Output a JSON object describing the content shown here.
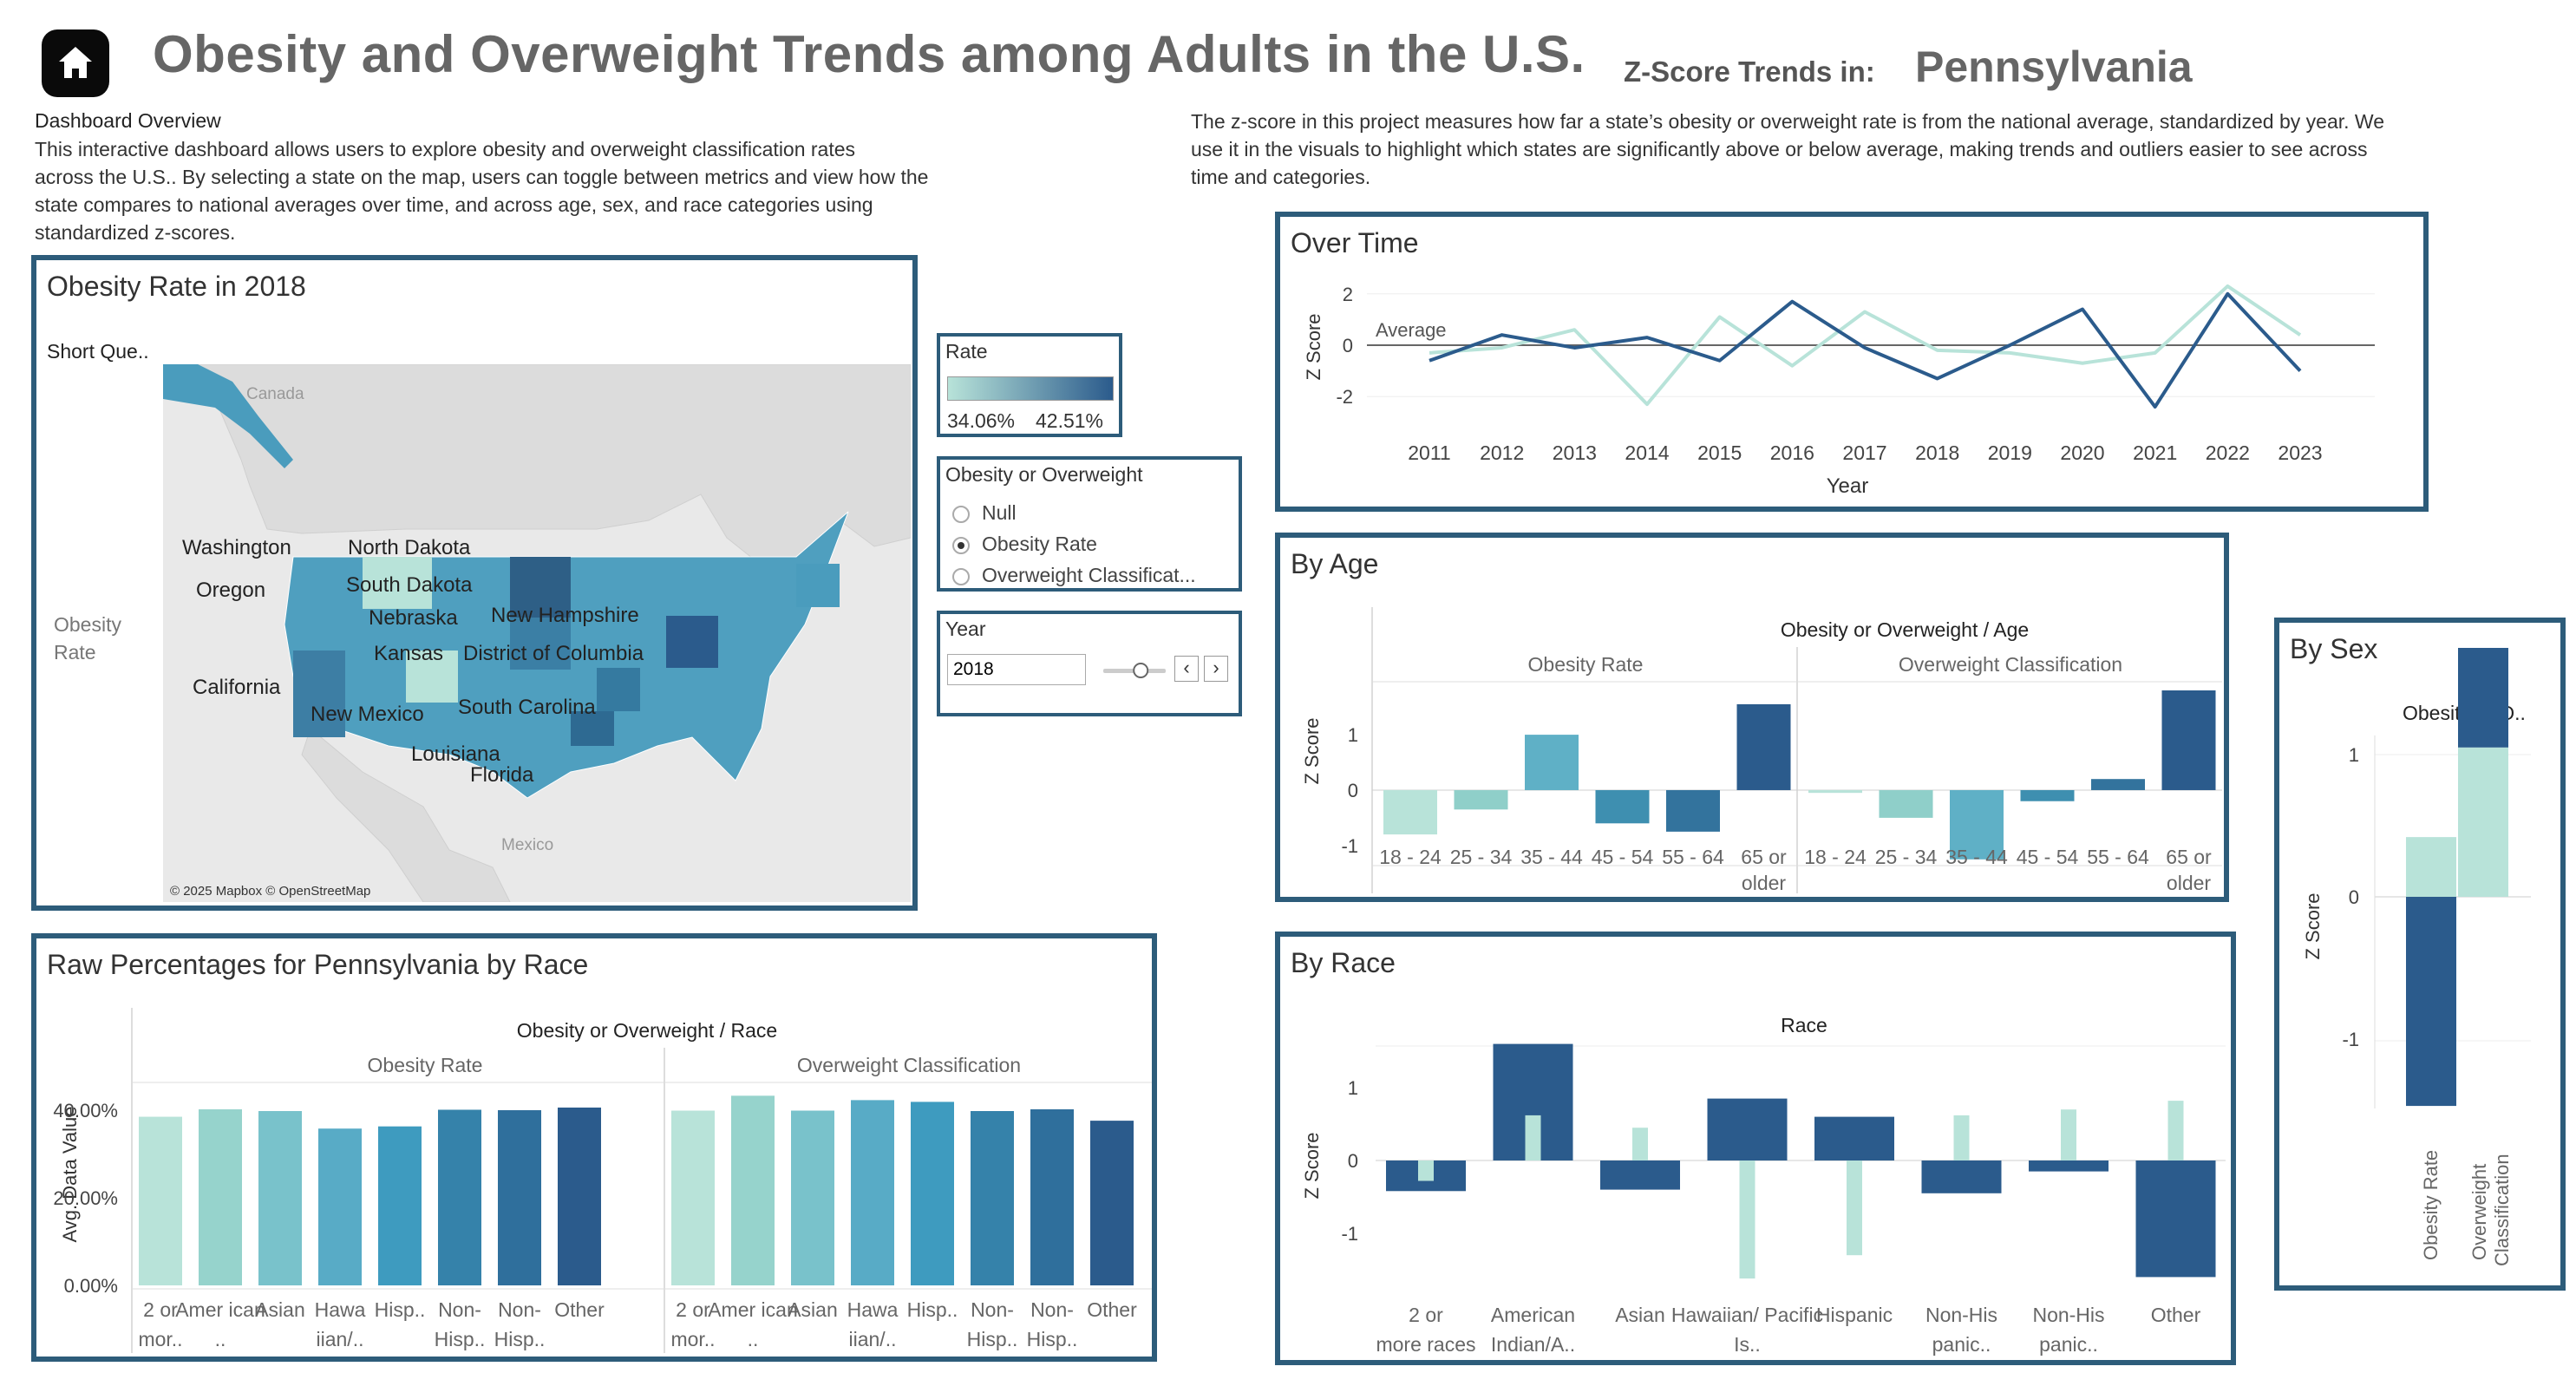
{
  "header": {
    "home_icon": "home-icon",
    "title": "Obesity and Overweight Trends among Adults in the U.S.",
    "zscore_label": "Z-Score Trends in:",
    "state": "Pennsylvania"
  },
  "overview": {
    "heading": "Dashboard Overview",
    "lines": [
      "This interactive dashboard allows users to explore obesity and overweight classification rates",
      "across the U.S.. By selecting a state on the map, users can toggle between metrics and view how the",
      "state compares to national averages over time, and across age, sex, and race categories using",
      "standardized z-scores."
    ],
    "zscore_lines": [
      "The z-score in this project measures how far a state’s obesity or overweight rate is from the national average, standardized by year. We",
      "use it in the visuals to highlight which states are significantly above or below average, making trends and outliers easier to see across",
      "time and categories."
    ]
  },
  "colors": {
    "border": "#2d5c7a",
    "dark": "#2b5b8c",
    "light": "#b8e3d9",
    "mid": "#3e8fb0"
  },
  "map": {
    "title": "Obesity Rate  in 2018",
    "short_question": "Short Que..",
    "row_label_1": "Obesity",
    "row_label_2": "Rate",
    "labels": {
      "canada": "Canada",
      "mexico": "Mexico",
      "washington": "Washington",
      "oregon": "Oregon",
      "california": "California",
      "north_dakota": "North Dakota",
      "south_dakota": "South Dakota",
      "nebraska": "Nebraska",
      "kansas": "Kansas",
      "new_mexico": "New Mexico",
      "louisiana": "Louisiana",
      "florida": "Florida",
      "south_carolina": "South Carolina",
      "dc": "District of Columbia",
      "new_hampshire": "New Hampshire"
    },
    "attribution": "© 2025 Mapbox © OpenStreetMap"
  },
  "legend": {
    "title": "Rate",
    "min": "34.06%",
    "max": "42.51%"
  },
  "filter": {
    "title": "Obesity or Overweight",
    "options": [
      "Null",
      "Obesity Rate",
      "Overweight Classificat..."
    ],
    "selected": "Obesity Rate"
  },
  "year_control": {
    "title": "Year",
    "value": "2018",
    "slider_fraction": 0.6
  },
  "over_time": {
    "title": "Over Time",
    "ylabel": "Z Score",
    "xlabel": "Year",
    "average_label": "Average"
  },
  "by_age": {
    "title": "By Age",
    "header": "Obesity or Overweight  /  Age",
    "ylabel": "Z Score",
    "groups": [
      "Obesity Rate",
      "Overweight Classification"
    ],
    "tick_1": "1",
    "tick_0": "0",
    "tick_m1": "-1"
  },
  "by_sex": {
    "title": "By Sex",
    "header": "Obesity or O..",
    "ylabel": "Z Score",
    "cat_obesity": "Obesity Rate",
    "cat_overweight_1": "Overweight",
    "cat_overweight_2": "Classification"
  },
  "raw_race": {
    "title": "Raw Percentages for Pennsylvania by Race",
    "header": "Obesity or Overweight  /  Race",
    "ylabel": "Avg. Data Value",
    "groups": [
      "Obesity Rate",
      "Overweight Classification"
    ]
  },
  "by_race": {
    "title": "By Race",
    "header": "Race",
    "ylabel": "Z Score"
  },
  "chart_data": [
    {
      "id": "over_time",
      "type": "line",
      "x": [
        2011,
        2012,
        2013,
        2014,
        2015,
        2016,
        2017,
        2018,
        2019,
        2020,
        2021,
        2022,
        2023
      ],
      "series": [
        {
          "color": "#b8e3d9",
          "values": [
            -0.3,
            -0.1,
            0.6,
            -2.3,
            1.1,
            -0.8,
            1.3,
            -0.2,
            -0.3,
            -0.7,
            -0.3,
            2.3,
            0.4
          ]
        },
        {
          "color": "#2b5b8c",
          "values": [
            -0.6,
            0.4,
            -0.1,
            0.3,
            -0.6,
            1.7,
            -0.1,
            -1.3,
            0.0,
            1.4,
            -2.4,
            2.0,
            -1.0
          ]
        }
      ],
      "ylim": [
        -2.5,
        2.5
      ],
      "yticks": [
        2,
        0,
        -2
      ],
      "xlabel": "Year",
      "ylabel": "Z Score",
      "reference_line": {
        "value": 0,
        "label": "Average"
      }
    },
    {
      "id": "by_age",
      "type": "bar",
      "categories": [
        "18 - 24",
        "25 - 34",
        "35 - 44",
        "45 - 54",
        "55 - 64",
        "65 or older"
      ],
      "series": [
        {
          "name": "Obesity Rate",
          "values": [
            -0.8,
            -0.35,
            1.0,
            -0.6,
            -0.75,
            1.55
          ]
        },
        {
          "name": "Overweight Classification",
          "values": [
            -0.05,
            -0.5,
            -1.25,
            -0.2,
            0.2,
            1.8
          ]
        }
      ],
      "ylim": [
        -1.3,
        1.8
      ],
      "ylabel": "Z Score"
    },
    {
      "id": "by_sex",
      "type": "bar",
      "categories": [
        "Obesity Rate",
        "Overweight Classification"
      ],
      "series": [
        {
          "color": "#b8e3d9",
          "values": [
            0.42,
            1.05
          ]
        },
        {
          "color": "#2b5b8c",
          "values": [
            -1.47,
            0.7
          ]
        }
      ],
      "yticks": [
        1,
        0,
        -1
      ],
      "ylabel": "Z Score"
    },
    {
      "id": "raw_race",
      "type": "bar",
      "categories": [
        "2 or mor..",
        "Amer ican ..",
        "Asian",
        "Hawa iian/..",
        "Hisp..",
        "Non- Hisp..",
        "Non- Hisp..",
        "Other"
      ],
      "series": [
        {
          "name": "Obesity Rate",
          "values": [
            38.5,
            40.2,
            39.8,
            35.8,
            36.3,
            40.1,
            40.0,
            40.6
          ]
        },
        {
          "name": "Overweight Classification",
          "values": [
            39.9,
            43.3,
            39.9,
            42.3,
            41.9,
            39.8,
            40.2,
            37.6
          ]
        }
      ],
      "yticks": [
        "0.00%",
        "20.00%",
        "40.00%"
      ],
      "ylim": [
        0,
        45
      ],
      "ylabel": "Avg. Data Value"
    },
    {
      "id": "by_race",
      "type": "bar",
      "categories": [
        "2 or more races",
        "American Indian/A..",
        "Asian",
        "Hawaiian/ Pacific Is..",
        "Hispanic",
        "Non-His panic..",
        "Non-His panic..",
        "Other"
      ],
      "series": [
        {
          "color": "#2b5b8c",
          "values": [
            -0.42,
            1.6,
            -0.4,
            0.85,
            0.6,
            -0.45,
            -0.15,
            -1.6
          ]
        },
        {
          "color": "#b8e3d9",
          "values": [
            -0.28,
            0.62,
            0.45,
            -1.62,
            -1.3,
            0.62,
            0.7,
            0.82
          ]
        }
      ],
      "yticks": [
        1,
        0,
        -1
      ],
      "ylim": [
        -1.8,
        1.8
      ],
      "ylabel": "Z Score"
    }
  ]
}
